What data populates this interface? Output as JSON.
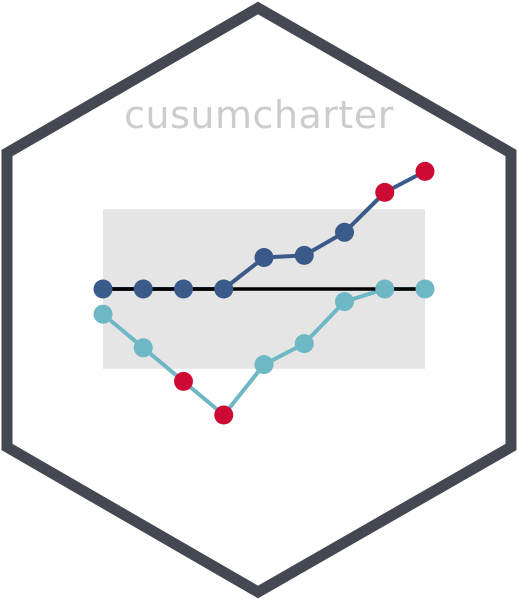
{
  "title": "cusumcharter",
  "colors": {
    "hex_border": "#444852",
    "hex_fill": "#ffffff",
    "title": "#cccccc",
    "control_band": "#e5e5e5",
    "baseline": "#000000",
    "upper_series": "#3a5a8a",
    "lower_series": "#6db8c4",
    "out_of_control": "#cc0a33"
  },
  "chart_data": {
    "type": "line",
    "x": [
      1,
      2,
      3,
      4,
      5,
      6,
      7,
      8,
      9
    ],
    "control_limits": [
      -1.9,
      1.9
    ],
    "baseline": 0,
    "ylim": [
      -3.1,
      2.9
    ],
    "series": [
      {
        "values": [
          0,
          0,
          0,
          0,
          0.75,
          0.8,
          1.35,
          2.3,
          2.8
        ],
        "out_of_control": [
          false,
          false,
          false,
          false,
          false,
          false,
          false,
          true,
          true
        ]
      },
      {
        "values": [
          -0.6,
          -1.4,
          -2.2,
          -3.0,
          -1.8,
          -1.3,
          -0.3,
          0,
          0
        ],
        "out_of_control": [
          false,
          false,
          true,
          true,
          false,
          false,
          false,
          false,
          false
        ]
      }
    ]
  }
}
